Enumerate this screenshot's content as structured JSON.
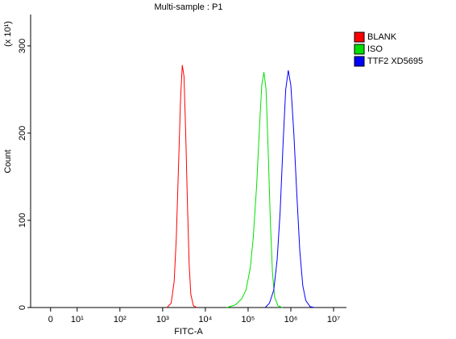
{
  "chart_data": {
    "type": "line",
    "title": "Multi-sample : P1",
    "x_label": "FITC-A",
    "y_label": "Count",
    "y_multiplier": "(x 10¹)",
    "xscale": "biexponential",
    "xlim": [
      -7.5,
      20000000
    ],
    "xticks": [
      0,
      {
        "value": 10,
        "label": "10¹"
      },
      {
        "value": 100,
        "label": "10²"
      },
      {
        "value": 1000,
        "label": "10³"
      },
      {
        "value": 10000,
        "label": "10⁴"
      },
      {
        "value": 100000,
        "label": "10⁵"
      },
      {
        "value": 1000000,
        "label": "10⁶"
      },
      {
        "value": 10000000,
        "label": "10⁷"
      }
    ],
    "ylim": [
      0,
      336
    ],
    "yticks": [
      0,
      100,
      200,
      300
    ],
    "legend": "top-right",
    "series": [
      {
        "name": "BLANK",
        "color": "#ff0000",
        "x": [
          1259,
          1585,
          1862,
          2089,
          2344,
          2630,
          2884,
          3162,
          3467,
          3802,
          4169,
          4571,
          5248,
          6310
        ],
        "values": [
          0,
          5,
          30,
          80,
          160,
          240,
          278,
          265,
          200,
          120,
          50,
          15,
          2,
          0
        ]
      },
      {
        "name": "ISO",
        "color": "#00e000",
        "x": [
          31623,
          50119,
          70795,
          89125,
          112202,
          131826,
          158489,
          186209,
          208930,
          234423,
          263027,
          295121,
          331131,
          371535,
          416869,
          501187,
          630957
        ],
        "values": [
          0,
          3,
          10,
          20,
          45,
          80,
          140,
          210,
          255,
          270,
          250,
          180,
          100,
          40,
          12,
          2,
          0
        ]
      },
      {
        "name": "TTF2 XD5695",
        "color": "#0000ff",
        "x": [
          251189,
          316228,
          398107,
          478630,
          562341,
          660693,
          758578,
          870964,
          1000000,
          1174898,
          1380384,
          1621810,
          1905461,
          2238721,
          2818383,
          3548134
        ],
        "values": [
          0,
          5,
          20,
          55,
          110,
          190,
          250,
          272,
          255,
          200,
          130,
          65,
          25,
          8,
          1,
          0
        ]
      }
    ]
  }
}
